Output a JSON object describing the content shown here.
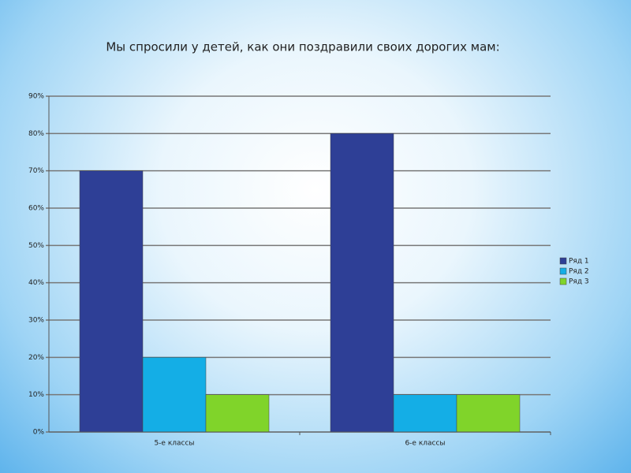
{
  "chart_data": {
    "type": "bar",
    "title": "Мы спросили у детей, как они поздравили своих дорогих мам:",
    "categories": [
      "5-е классы",
      "6-е классы"
    ],
    "series": [
      {
        "name": "Ряд 1",
        "color": "#2e3f96",
        "values": [
          70,
          80
        ]
      },
      {
        "name": "Ряд 2",
        "color": "#14aee6",
        "values": [
          20,
          10
        ]
      },
      {
        "name": "Ряд 3",
        "color": "#80d42a",
        "values": [
          10,
          10
        ]
      }
    ],
    "ylim": [
      0,
      90
    ],
    "yticks": [
      {
        "value": 0,
        "label": "0%"
      },
      {
        "value": 10,
        "label": "10%"
      },
      {
        "value": 20,
        "label": "20%"
      },
      {
        "value": 30,
        "label": "30%"
      },
      {
        "value": 40,
        "label": "40%"
      },
      {
        "value": 50,
        "label": "50%"
      },
      {
        "value": 60,
        "label": "60%"
      },
      {
        "value": 70,
        "label": "70%"
      },
      {
        "value": 80,
        "label": "80%"
      },
      {
        "value": 90,
        "label": "90%"
      }
    ],
    "grid": true,
    "legend": "right"
  }
}
